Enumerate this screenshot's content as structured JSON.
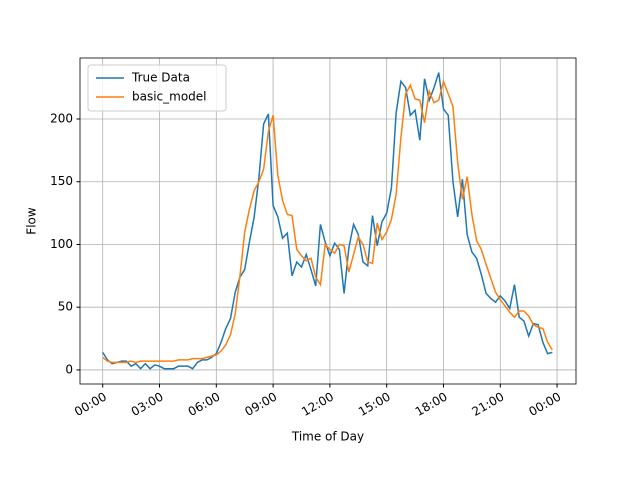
{
  "chart_data": {
    "type": "line",
    "xlabel": "Time of Day",
    "ylabel": "Flow",
    "x": [
      0,
      0.25,
      0.5,
      0.75,
      1,
      1.25,
      1.5,
      1.75,
      2,
      2.25,
      2.5,
      2.75,
      3,
      3.25,
      3.5,
      3.75,
      4,
      4.25,
      4.5,
      4.75,
      5,
      5.25,
      5.5,
      5.75,
      6,
      6.25,
      6.5,
      6.75,
      7,
      7.25,
      7.5,
      7.75,
      8,
      8.25,
      8.5,
      8.75,
      9,
      9.25,
      9.5,
      9.75,
      10,
      10.25,
      10.5,
      10.75,
      11,
      11.25,
      11.5,
      11.75,
      12,
      12.25,
      12.5,
      12.75,
      13,
      13.25,
      13.5,
      13.75,
      14,
      14.25,
      14.5,
      14.75,
      15,
      15.25,
      15.5,
      15.75,
      16,
      16.25,
      16.5,
      16.75,
      17,
      17.25,
      17.5,
      17.75,
      18,
      18.25,
      18.5,
      18.75,
      19,
      19.25,
      19.5,
      19.75,
      20,
      20.25,
      20.5,
      20.75,
      21,
      21.25,
      21.5,
      21.75,
      22,
      22.25,
      22.5,
      22.75,
      23,
      23.25,
      23.5,
      23.75
    ],
    "series": [
      {
        "name": "True Data",
        "color": "#1f77b4",
        "values": [
          14,
          8,
          5,
          6,
          7,
          7,
          3,
          5,
          1,
          5,
          1,
          4,
          3,
          1,
          1,
          1,
          3,
          3,
          3,
          1,
          6,
          8,
          8,
          10,
          13,
          22,
          33,
          41,
          62,
          74,
          80,
          102,
          122,
          153,
          196,
          204,
          131,
          122,
          105,
          109,
          75,
          86,
          82,
          92,
          80,
          67,
          116,
          102,
          91,
          101,
          96,
          61,
          97,
          116,
          108,
          86,
          83,
          123,
          99,
          118,
          125,
          145,
          205,
          230,
          225,
          203,
          207,
          183,
          232,
          215,
          225,
          237,
          208,
          203,
          150,
          122,
          152,
          108,
          94,
          89,
          76,
          61,
          57,
          54,
          59,
          55,
          49,
          68,
          42,
          39,
          27,
          37,
          36,
          22,
          13,
          14
        ]
      },
      {
        "name": "basic_model",
        "color": "#ff7f0e",
        "values": [
          10,
          7,
          6,
          6,
          6,
          6,
          7,
          6,
          7,
          7,
          7,
          7,
          7,
          7,
          7,
          7,
          8,
          8,
          8,
          9,
          9,
          9,
          10,
          11,
          12,
          15,
          20,
          28,
          45,
          75,
          110,
          128,
          143,
          150,
          160,
          190,
          203,
          155,
          135,
          124,
          123,
          96,
          91,
          87,
          89,
          74,
          68,
          100,
          96,
          93,
          100,
          99,
          78,
          92,
          106,
          100,
          86,
          85,
          117,
          104,
          110,
          120,
          140,
          185,
          220,
          227,
          216,
          215,
          197,
          222,
          213,
          215,
          230,
          220,
          210,
          165,
          136,
          154,
          124,
          103,
          96,
          84,
          73,
          62,
          56,
          51,
          46,
          42,
          47,
          47,
          43,
          36,
          34,
          33,
          22,
          16
        ]
      }
    ],
    "xlim": [
      -1.2,
      25.0
    ],
    "ylim": [
      -11.2,
      248.6
    ],
    "xticks": [
      {
        "value": 0,
        "label": "00:00"
      },
      {
        "value": 3,
        "label": "03:00"
      },
      {
        "value": 6,
        "label": "06:00"
      },
      {
        "value": 9,
        "label": "09:00"
      },
      {
        "value": 12,
        "label": "12:00"
      },
      {
        "value": 15,
        "label": "15:00"
      },
      {
        "value": 18,
        "label": "18:00"
      },
      {
        "value": 21,
        "label": "21:00"
      },
      {
        "value": 24,
        "label": "00:00"
      }
    ],
    "yticks": [
      0,
      50,
      100,
      150,
      200
    ],
    "grid": true,
    "legend": "upper left"
  }
}
